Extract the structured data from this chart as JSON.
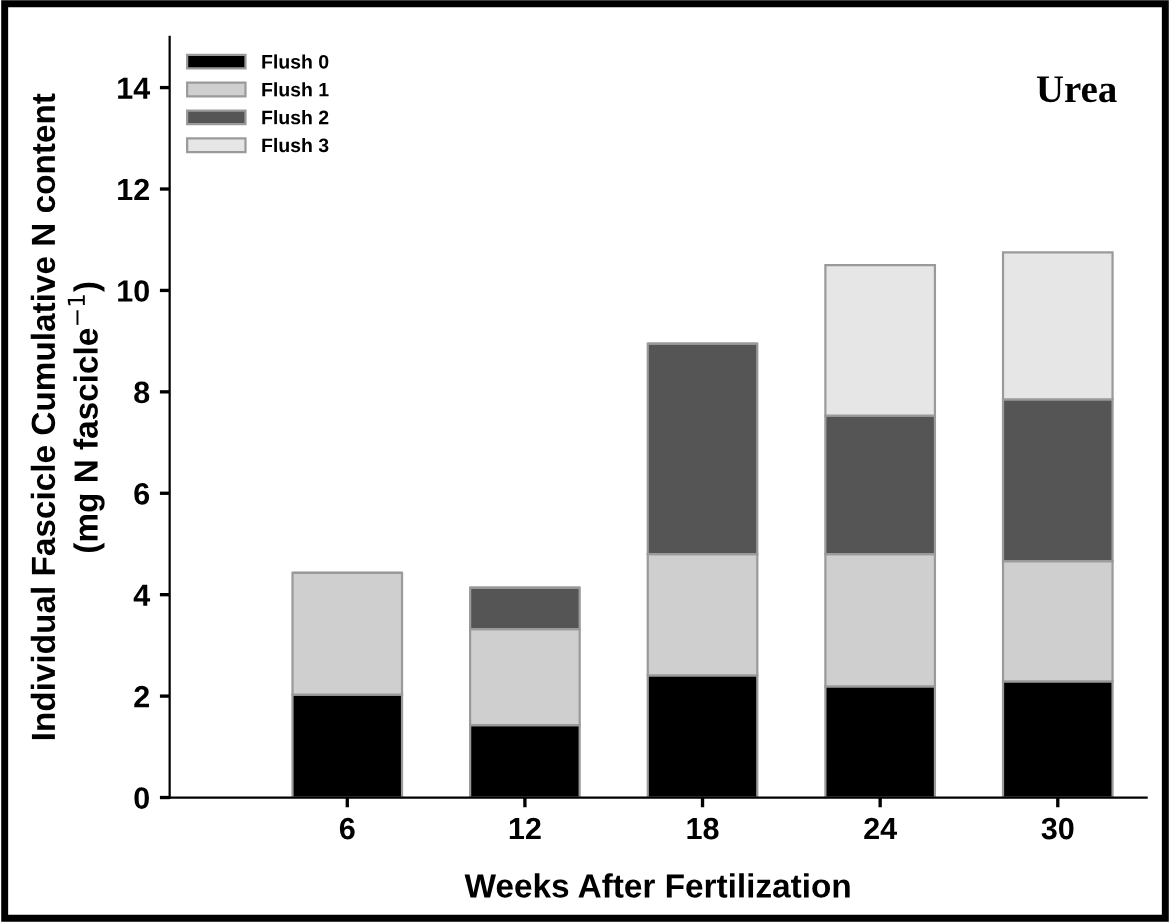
{
  "chart_data": {
    "type": "bar",
    "stacked": true,
    "title": "Urea",
    "xlabel": "Weeks After Fertilization",
    "ylabel": "Individual Fascicle Cumulative N content\n(mg N fascicle$^{−1}$)",
    "x": [
      6,
      12,
      18,
      24,
      30
    ],
    "xlim": [
      0,
      33
    ],
    "xticks": [
      6,
      12,
      18,
      24,
      30
    ],
    "ylim": [
      0,
      15
    ],
    "yticks": [
      0,
      2,
      4,
      6,
      8,
      10,
      12,
      14
    ],
    "series": [
      {
        "name": "Flush 0",
        "color": "#000000",
        "values": [
          2.03,
          1.43,
          2.41,
          2.19,
          2.29
        ]
      },
      {
        "name": "Flush 1",
        "color": "#cfcfcf",
        "values": [
          2.4,
          1.89,
          2.39,
          2.61,
          2.37
        ]
      },
      {
        "name": "Flush 2",
        "color": "#555555",
        "values": [
          null,
          0.82,
          4.15,
          2.73,
          3.19
        ]
      },
      {
        "name": "Flush 3",
        "color": "#e6e6e6",
        "values": [
          null,
          null,
          null,
          2.97,
          2.9
        ]
      }
    ],
    "legend": "top left",
    "grid": false
  }
}
